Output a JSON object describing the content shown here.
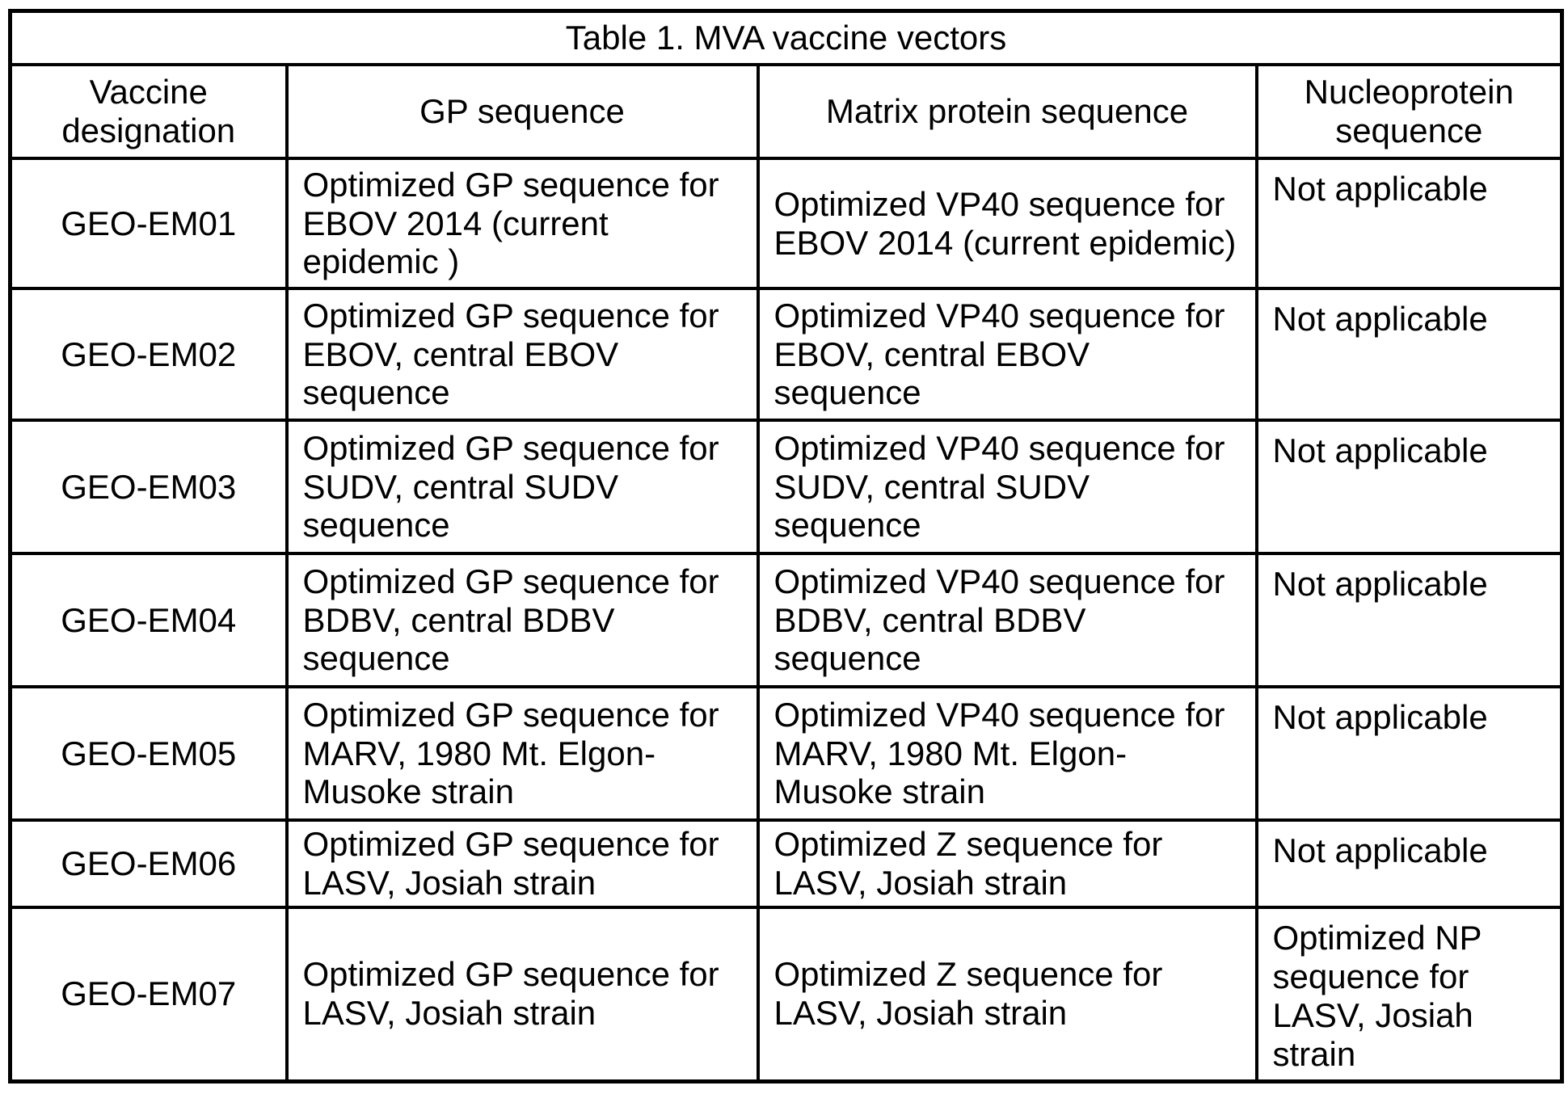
{
  "table": {
    "title": "Table 1. MVA vaccine vectors",
    "columns": [
      "Vaccine designation",
      "GP sequence",
      "Matrix protein sequence",
      "Nucleoprotein sequence"
    ],
    "rows": [
      {
        "designation": "GEO-EM01",
        "gp": "Optimized GP sequence for EBOV 2014 (current epidemic )",
        "matrix": "Optimized VP40 sequence for EBOV 2014 (current epidemic)",
        "np": "Not applicable"
      },
      {
        "designation": "GEO-EM02",
        "gp": "Optimized GP sequence for EBOV, central EBOV sequence",
        "matrix": "Optimized VP40 sequence for EBOV, central EBOV sequence",
        "np": "Not applicable"
      },
      {
        "designation": "GEO-EM03",
        "gp": "Optimized GP sequence for SUDV, central SUDV sequence",
        "matrix": "Optimized VP40 sequence for SUDV, central SUDV sequence",
        "np": "Not applicable"
      },
      {
        "designation": "GEO-EM04",
        "gp": "Optimized GP sequence for BDBV, central BDBV sequence",
        "matrix": "Optimized VP40 sequence for BDBV, central BDBV sequence",
        "np": "Not applicable"
      },
      {
        "designation": "GEO-EM05",
        "gp": "Optimized GP sequence for MARV, 1980 Mt. Elgon-Musoke strain",
        "matrix": "Optimized VP40 sequence for MARV, 1980 Mt. Elgon-Musoke strain",
        "np": "Not applicable"
      },
      {
        "designation": "GEO-EM06",
        "gp": "Optimized GP sequence for LASV, Josiah strain",
        "matrix": "Optimized Z sequence for LASV, Josiah strain",
        "np": "Not applicable"
      },
      {
        "designation": "GEO-EM07",
        "gp": "Optimized GP sequence for LASV, Josiah strain",
        "matrix": "Optimized Z sequence for LASV, Josiah strain",
        "np": "Optimized NP sequence for LASV, Josiah strain"
      }
    ]
  }
}
